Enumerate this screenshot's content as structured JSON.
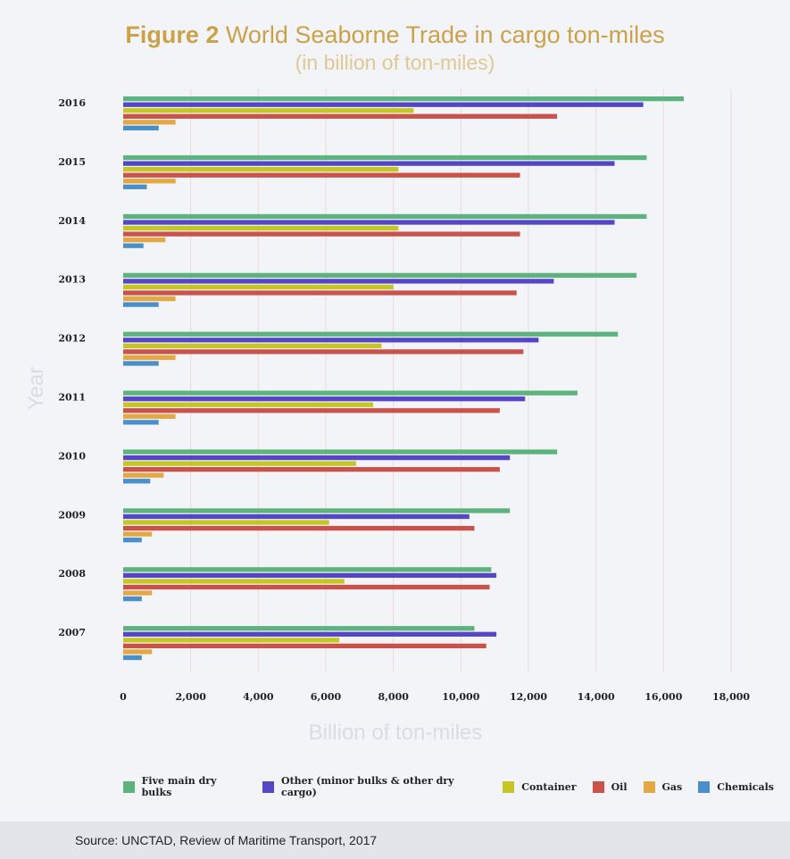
{
  "header": {
    "title_bold": "Figure 2",
    "title_rest": " World Seaborne Trade in cargo ton-miles",
    "subtitle": "(in billion of ton-miles)"
  },
  "footer": {
    "source": "Source: UNCTAD, Review of Maritime Transport, 2017"
  },
  "chart_data": {
    "type": "bar",
    "orientation": "horizontal",
    "title": "Figure 2 World Seaborne Trade in cargo ton-miles",
    "subtitle": "(in billion of ton-miles)",
    "xlabel": "Billion of ton-miles",
    "ylabel": "Year",
    "xlim": [
      0,
      18000
    ],
    "xticks": [
      0,
      2000,
      4000,
      6000,
      8000,
      10000,
      12000,
      14000,
      16000,
      18000
    ],
    "xtick_labels": [
      "0",
      "2,000",
      "4,000",
      "6,000",
      "8,000",
      "10,000",
      "12,000",
      "14,000",
      "16,000",
      "18,000"
    ],
    "grid": "vertical",
    "legend_position": "bottom",
    "categories": [
      "2016",
      "2015",
      "2014",
      "2013",
      "2012",
      "2011",
      "2010",
      "2009",
      "2008",
      "2007"
    ],
    "series": [
      {
        "name": "Five main dry bulks",
        "color": "#5db37e",
        "values": [
          16600,
          15500,
          15500,
          15200,
          14650,
          13450,
          12850,
          11450,
          10900,
          10400
        ]
      },
      {
        "name": "Other (minor bulks & other dry cargo)",
        "color": "#5446c4",
        "values": [
          15400,
          14550,
          14550,
          12750,
          12300,
          11900,
          11450,
          10250,
          11050,
          11050
        ]
      },
      {
        "name": "Container",
        "color": "#c3c623",
        "values": [
          8600,
          8150,
          8150,
          8000,
          7650,
          7400,
          6900,
          6100,
          6550,
          6400
        ]
      },
      {
        "name": "Oil",
        "color": "#c9534b",
        "values": [
          12850,
          11750,
          11750,
          11650,
          11850,
          11150,
          11150,
          10400,
          10850,
          10750
        ]
      },
      {
        "name": "Gas",
        "color": "#e3a844",
        "values": [
          1550,
          1550,
          1250,
          1550,
          1550,
          1550,
          1200,
          850,
          850,
          850
        ]
      },
      {
        "name": "Chemicals",
        "color": "#4a8fc9",
        "values": [
          1050,
          700,
          600,
          1050,
          1050,
          1050,
          800,
          550,
          550,
          550
        ]
      }
    ]
  }
}
